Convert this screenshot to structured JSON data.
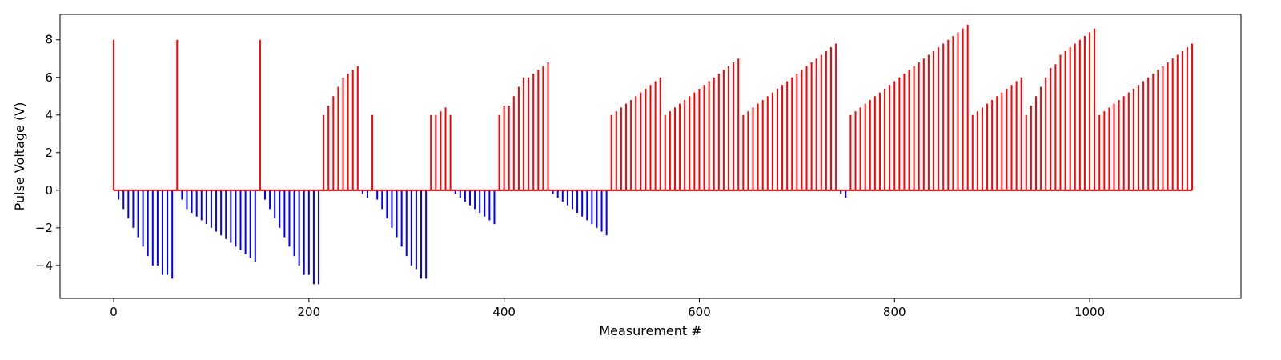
{
  "chart_data": {
    "type": "bar",
    "title": "",
    "xlabel": "Measurement #",
    "ylabel": "Pulse Voltage (V)",
    "xlim": [
      -55,
      1155
    ],
    "ylim": [
      -5.75,
      9.35
    ],
    "xticks": [
      0,
      200,
      400,
      600,
      800,
      1000
    ],
    "yticks": [
      -4,
      -2,
      0,
      2,
      4,
      6,
      8
    ],
    "grid": false,
    "colors": {
      "positive": "#ff0000",
      "negative": "#0000ff"
    },
    "segments": [
      {
        "x_start": 0,
        "step": 5,
        "values": [
          8,
          -0.5,
          -1.0,
          -1.5,
          -2.0,
          -2.5,
          -3.0,
          -3.5,
          -4.0,
          -4.0,
          -4.5,
          -4.5,
          -4.7
        ]
      },
      {
        "x_start": 65,
        "step": 5,
        "values": [
          8,
          -0.5,
          -1.0,
          -1.2,
          -1.4,
          -1.6,
          -1.8,
          -2.0,
          -2.2,
          -2.4,
          -2.6,
          -2.8,
          -3.0,
          -3.2,
          -3.4,
          -3.6,
          -3.8
        ]
      },
      {
        "x_start": 150,
        "step": 5,
        "values": [
          8,
          -0.5,
          -1.0,
          -1.5,
          -2.0,
          -2.5,
          -3.0,
          -3.5,
          -4.0,
          -4.5,
          -4.5,
          -5.0,
          -5.0
        ]
      },
      {
        "x_start": 215,
        "step": 5,
        "values": [
          4.0,
          4.5,
          5.0,
          5.5,
          6.0,
          6.2,
          6.4,
          6.6
        ]
      },
      {
        "x_start": 255,
        "step": 5,
        "values": [
          -0.2,
          -0.4
        ]
      },
      {
        "x_start": 265,
        "step": 5,
        "values": [
          4.0,
          -0.5,
          -1.0,
          -1.5,
          -2.0,
          -2.5,
          -3.0,
          -3.5,
          -4.0,
          -4.2,
          -4.7,
          -4.7
        ]
      },
      {
        "x_start": 325,
        "step": 5,
        "values": [
          4.0,
          4.0,
          4.2,
          4.4,
          4.0
        ]
      },
      {
        "x_start": 350,
        "step": 5,
        "values": [
          -0.2,
          -0.4,
          -0.6,
          -0.8,
          -1.0,
          -1.2,
          -1.4,
          -1.6,
          -1.8
        ]
      },
      {
        "x_start": 395,
        "step": 5,
        "values": [
          4.0,
          4.5,
          4.5,
          5.0,
          5.5,
          6.0,
          6.0,
          6.2,
          6.4,
          6.6,
          6.8
        ]
      },
      {
        "x_start": 450,
        "step": 5,
        "values": [
          -0.2,
          -0.4,
          -0.6,
          -0.8,
          -1.0,
          -1.2,
          -1.4,
          -1.6,
          -1.8,
          -2.0,
          -2.2,
          -2.4
        ]
      },
      {
        "x_start": 510,
        "step": 5,
        "values": [
          4.0,
          4.2,
          4.4,
          4.6,
          4.8,
          5.0,
          5.2,
          5.4,
          5.6,
          5.8,
          6.0
        ]
      },
      {
        "x_start": 565,
        "step": 5,
        "values": [
          4.0,
          4.2,
          4.4,
          4.6,
          4.8,
          5.0,
          5.2,
          5.4,
          5.6,
          5.8,
          6.0,
          6.2,
          6.4,
          6.6,
          6.8,
          7.0
        ]
      },
      {
        "x_start": 645,
        "step": 5,
        "values": [
          4.0,
          4.2,
          4.4,
          4.6,
          4.8,
          5.0,
          5.2,
          5.4,
          5.6,
          5.8,
          6.0,
          6.2,
          6.4,
          6.6,
          6.8,
          7.0,
          7.2,
          7.4,
          7.6,
          7.8
        ]
      },
      {
        "x_start": 745,
        "step": 5,
        "values": [
          -0.2,
          -0.4
        ]
      },
      {
        "x_start": 755,
        "step": 5,
        "values": [
          4.0,
          4.2,
          4.4,
          4.6,
          4.8,
          5.0,
          5.2,
          5.4,
          5.6,
          5.8,
          6.0,
          6.2,
          6.4,
          6.6,
          6.8,
          7.0,
          7.2,
          7.4,
          7.6,
          7.8,
          8.0,
          8.2,
          8.4,
          8.6,
          8.8
        ]
      },
      {
        "x_start": 880,
        "step": 5,
        "values": [
          4.0,
          4.2,
          4.4,
          4.6,
          4.8,
          5.0,
          5.2,
          5.4,
          5.6,
          5.8,
          6.0
        ]
      },
      {
        "x_start": 935,
        "step": 5,
        "values": [
          4.0,
          4.5,
          5.0,
          5.5,
          6.0,
          6.5,
          6.7,
          7.2,
          7.4,
          7.6,
          7.8,
          8.0,
          8.2,
          8.4,
          8.6
        ]
      },
      {
        "x_start": 1010,
        "step": 5,
        "values": [
          4.0,
          4.2,
          4.4,
          4.6,
          4.8,
          5.0,
          5.2,
          5.4,
          5.6,
          5.8,
          6.0,
          6.2,
          6.4,
          6.6,
          6.8,
          7.0,
          7.2,
          7.4,
          7.6,
          7.8
        ]
      }
    ]
  }
}
